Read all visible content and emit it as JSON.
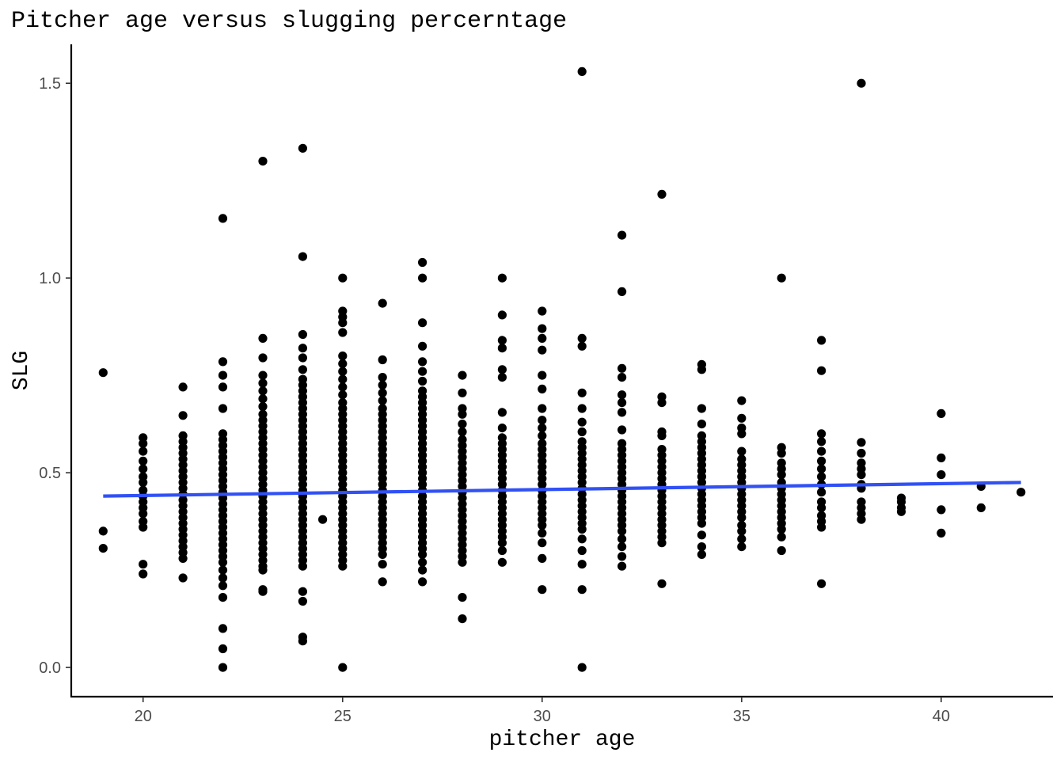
{
  "chart_data": {
    "type": "scatter",
    "title": "Pitcher age versus slugging percerntage",
    "xlabel": "pitcher age",
    "ylabel": "SLG",
    "xlim": [
      18.2,
      42.8
    ],
    "ylim": [
      -0.075,
      1.6
    ],
    "x_ticks": [
      20,
      25,
      30,
      35,
      40
    ],
    "y_ticks": [
      0.0,
      0.5,
      1.0,
      1.5
    ],
    "x_tick_labels": [
      "20",
      "25",
      "30",
      "35",
      "40"
    ],
    "y_tick_labels": [
      "0.0",
      "0.5",
      "1.0",
      "1.5"
    ],
    "grid": false,
    "legend": "none",
    "point_color": "#000000",
    "trend_color": "#3151f5",
    "trendline": {
      "method": "linear",
      "x": [
        19,
        42
      ],
      "y": [
        0.44,
        0.475
      ]
    },
    "points_by_age": [
      {
        "age": 19,
        "slg": [
          0.757,
          0.35,
          0.306
        ]
      },
      {
        "age": 20,
        "slg": [
          0.59,
          0.575,
          0.555,
          0.53,
          0.51,
          0.49,
          0.475,
          0.455,
          0.44,
          0.425,
          0.41,
          0.395,
          0.375,
          0.36,
          0.265,
          0.24
        ]
      },
      {
        "age": 21,
        "slg": [
          0.72,
          0.647,
          0.595,
          0.58,
          0.565,
          0.55,
          0.535,
          0.52,
          0.505,
          0.49,
          0.475,
          0.46,
          0.445,
          0.43,
          0.415,
          0.4,
          0.385,
          0.37,
          0.355,
          0.34,
          0.325,
          0.31,
          0.295,
          0.28,
          0.23
        ]
      },
      {
        "age": 22,
        "slg": [
          1.153,
          0.785,
          0.75,
          0.72,
          0.665,
          0.6,
          0.585,
          0.57,
          0.555,
          0.54,
          0.525,
          0.51,
          0.495,
          0.48,
          0.465,
          0.45,
          0.435,
          0.42,
          0.405,
          0.39,
          0.375,
          0.36,
          0.345,
          0.33,
          0.315,
          0.3,
          0.285,
          0.27,
          0.25,
          0.23,
          0.21,
          0.18,
          0.1,
          0.048,
          0.0
        ]
      },
      {
        "age": 23,
        "slg": [
          1.3,
          0.845,
          0.795,
          0.75,
          0.73,
          0.71,
          0.69,
          0.67,
          0.65,
          0.635,
          0.62,
          0.605,
          0.59,
          0.575,
          0.56,
          0.545,
          0.53,
          0.515,
          0.5,
          0.485,
          0.47,
          0.455,
          0.44,
          0.425,
          0.41,
          0.395,
          0.38,
          0.365,
          0.35,
          0.335,
          0.32,
          0.305,
          0.29,
          0.275,
          0.26,
          0.25,
          0.2,
          0.195
        ]
      },
      {
        "age": 24,
        "slg": [
          1.333,
          1.055,
          0.855,
          0.82,
          0.795,
          0.765,
          0.74,
          0.725,
          0.71,
          0.695,
          0.68,
          0.665,
          0.65,
          0.635,
          0.62,
          0.605,
          0.59,
          0.575,
          0.56,
          0.545,
          0.53,
          0.515,
          0.5,
          0.485,
          0.47,
          0.455,
          0.44,
          0.425,
          0.41,
          0.395,
          0.38,
          0.365,
          0.35,
          0.335,
          0.32,
          0.305,
          0.29,
          0.275,
          0.26,
          0.195,
          0.17,
          0.078,
          0.068
        ]
      },
      {
        "age": 24.5,
        "slg": [
          0.38
        ]
      },
      {
        "age": 25,
        "slg": [
          1.0,
          0.915,
          0.9,
          0.885,
          0.86,
          0.8,
          0.78,
          0.76,
          0.74,
          0.72,
          0.7,
          0.68,
          0.665,
          0.65,
          0.635,
          0.62,
          0.605,
          0.59,
          0.575,
          0.56,
          0.545,
          0.53,
          0.515,
          0.5,
          0.485,
          0.47,
          0.455,
          0.44,
          0.425,
          0.41,
          0.395,
          0.38,
          0.365,
          0.35,
          0.335,
          0.32,
          0.305,
          0.29,
          0.275,
          0.26,
          0.0
        ]
      },
      {
        "age": 26,
        "slg": [
          0.935,
          0.79,
          0.745,
          0.725,
          0.705,
          0.685,
          0.665,
          0.65,
          0.635,
          0.62,
          0.605,
          0.59,
          0.575,
          0.56,
          0.545,
          0.53,
          0.515,
          0.5,
          0.485,
          0.47,
          0.455,
          0.44,
          0.425,
          0.41,
          0.395,
          0.38,
          0.365,
          0.35,
          0.335,
          0.32,
          0.305,
          0.29,
          0.265,
          0.22
        ]
      },
      {
        "age": 27,
        "slg": [
          1.04,
          1.0,
          0.885,
          0.825,
          0.785,
          0.76,
          0.735,
          0.71,
          0.695,
          0.68,
          0.665,
          0.65,
          0.635,
          0.62,
          0.605,
          0.59,
          0.575,
          0.56,
          0.545,
          0.53,
          0.515,
          0.5,
          0.485,
          0.47,
          0.455,
          0.44,
          0.425,
          0.41,
          0.395,
          0.38,
          0.365,
          0.35,
          0.335,
          0.32,
          0.305,
          0.29,
          0.27,
          0.25,
          0.22
        ]
      },
      {
        "age": 28,
        "slg": [
          0.75,
          0.705,
          0.665,
          0.65,
          0.625,
          0.605,
          0.585,
          0.57,
          0.555,
          0.54,
          0.525,
          0.51,
          0.495,
          0.48,
          0.465,
          0.45,
          0.435,
          0.42,
          0.405,
          0.39,
          0.375,
          0.36,
          0.345,
          0.33,
          0.315,
          0.3,
          0.285,
          0.27,
          0.18,
          0.125
        ]
      },
      {
        "age": 29,
        "slg": [
          1.0,
          0.905,
          0.84,
          0.82,
          0.765,
          0.745,
          0.655,
          0.615,
          0.59,
          0.575,
          0.56,
          0.545,
          0.53,
          0.515,
          0.5,
          0.485,
          0.47,
          0.455,
          0.44,
          0.425,
          0.41,
          0.395,
          0.38,
          0.365,
          0.35,
          0.335,
          0.32,
          0.3,
          0.27
        ]
      },
      {
        "age": 30,
        "slg": [
          0.915,
          0.87,
          0.845,
          0.815,
          0.75,
          0.715,
          0.665,
          0.635,
          0.615,
          0.595,
          0.575,
          0.56,
          0.545,
          0.53,
          0.515,
          0.5,
          0.485,
          0.47,
          0.455,
          0.44,
          0.425,
          0.41,
          0.395,
          0.38,
          0.365,
          0.345,
          0.32,
          0.28,
          0.2
        ]
      },
      {
        "age": 31,
        "slg": [
          1.53,
          0.845,
          0.825,
          0.705,
          0.665,
          0.63,
          0.605,
          0.58,
          0.565,
          0.55,
          0.535,
          0.52,
          0.505,
          0.49,
          0.475,
          0.46,
          0.445,
          0.43,
          0.415,
          0.4,
          0.385,
          0.37,
          0.355,
          0.33,
          0.3,
          0.265,
          0.2,
          0.0
        ]
      },
      {
        "age": 32,
        "slg": [
          1.11,
          0.965,
          0.768,
          0.745,
          0.7,
          0.68,
          0.655,
          0.61,
          0.575,
          0.56,
          0.545,
          0.53,
          0.515,
          0.5,
          0.485,
          0.47,
          0.455,
          0.44,
          0.425,
          0.41,
          0.395,
          0.38,
          0.365,
          0.35,
          0.33,
          0.31,
          0.285,
          0.26
        ]
      },
      {
        "age": 33,
        "slg": [
          1.215,
          0.695,
          0.68,
          0.605,
          0.595,
          0.56,
          0.545,
          0.53,
          0.515,
          0.5,
          0.485,
          0.47,
          0.455,
          0.44,
          0.425,
          0.41,
          0.395,
          0.38,
          0.365,
          0.35,
          0.335,
          0.32,
          0.215
        ]
      },
      {
        "age": 34,
        "slg": [
          0.778,
          0.765,
          0.665,
          0.625,
          0.595,
          0.58,
          0.565,
          0.55,
          0.535,
          0.52,
          0.505,
          0.49,
          0.475,
          0.46,
          0.445,
          0.43,
          0.415,
          0.4,
          0.385,
          0.37,
          0.34,
          0.31,
          0.29
        ]
      },
      {
        "age": 35,
        "slg": [
          0.685,
          0.64,
          0.615,
          0.6,
          0.555,
          0.535,
          0.52,
          0.505,
          0.49,
          0.475,
          0.46,
          0.445,
          0.43,
          0.415,
          0.4,
          0.385,
          0.365,
          0.35,
          0.33,
          0.31
        ]
      },
      {
        "age": 36,
        "slg": [
          1.0,
          0.565,
          0.55,
          0.525,
          0.51,
          0.495,
          0.475,
          0.46,
          0.445,
          0.43,
          0.415,
          0.4,
          0.385,
          0.37,
          0.355,
          0.335,
          0.3
        ]
      },
      {
        "age": 37,
        "slg": [
          0.84,
          0.762,
          0.6,
          0.58,
          0.555,
          0.53,
          0.51,
          0.49,
          0.47,
          0.45,
          0.425,
          0.41,
          0.39,
          0.375,
          0.36,
          0.215
        ]
      },
      {
        "age": 38,
        "slg": [
          1.5,
          0.578,
          0.55,
          0.525,
          0.51,
          0.495,
          0.47,
          0.46,
          0.425,
          0.41,
          0.395,
          0.38
        ]
      },
      {
        "age": 39,
        "slg": [
          0.435,
          0.425,
          0.41,
          0.4
        ]
      },
      {
        "age": 40,
        "slg": [
          0.652,
          0.538,
          0.495,
          0.405,
          0.345
        ]
      },
      {
        "age": 41,
        "slg": [
          0.465,
          0.41
        ]
      },
      {
        "age": 42,
        "slg": [
          0.45
        ]
      }
    ]
  }
}
